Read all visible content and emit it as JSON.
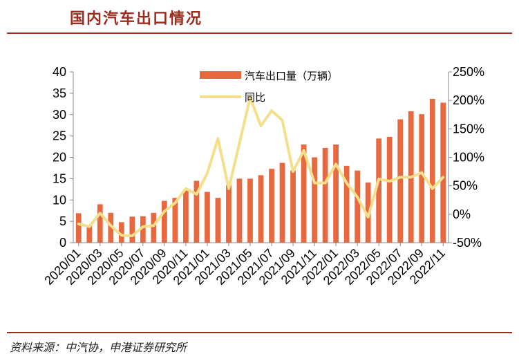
{
  "header": {
    "title": "国内汽车出口情况"
  },
  "footer": {
    "source": "资料来源：中汽协，申港证券研究所"
  },
  "chart_data": {
    "type": "bar+line",
    "categories": [
      "2020/01",
      "2020/02",
      "2020/03",
      "2020/04",
      "2020/05",
      "2020/06",
      "2020/07",
      "2020/08",
      "2020/09",
      "2020/10",
      "2020/11",
      "2020/12",
      "2021/01",
      "2021/02",
      "2021/03",
      "2021/04",
      "2021/05",
      "2021/06",
      "2021/07",
      "2021/08",
      "2021/09",
      "2021/10",
      "2021/11",
      "2021/12",
      "2022/01",
      "2022/02",
      "2022/03",
      "2022/04",
      "2022/05",
      "2022/06",
      "2022/07",
      "2022/08",
      "2022/09",
      "2022/10",
      "2022/11"
    ],
    "x_tick_labels": [
      "2020/01",
      "2020/03",
      "2020/05",
      "2020/07",
      "2020/09",
      "2020/11",
      "2021/01",
      "2021/03",
      "2021/05",
      "2021/07",
      "2021/09",
      "2021/11",
      "2022/01",
      "2022/03",
      "2022/05",
      "2022/07",
      "2022/09",
      "2022/11"
    ],
    "series": [
      {
        "name": "汽车出口量（万辆）",
        "kind": "bar",
        "axis": "left",
        "color": "#e8693f",
        "values": [
          6.9,
          4.0,
          9.0,
          7.0,
          4.8,
          6.1,
          6.2,
          7.0,
          9.8,
          10.5,
          12.5,
          14.5,
          11.9,
          10.5,
          13.5,
          15.0,
          15.0,
          15.8,
          17.3,
          18.7,
          16.9,
          23.0,
          20.0,
          22.2,
          23.0,
          18.0,
          16.9,
          14.1,
          24.4,
          24.8,
          28.9,
          30.8,
          30.1,
          33.7,
          32.8
        ]
      },
      {
        "name": "同比",
        "kind": "line",
        "axis": "right",
        "color": "#f3df8c",
        "values": [
          -0.17,
          -0.22,
          0.02,
          -0.2,
          -0.37,
          -0.38,
          -0.22,
          -0.2,
          0.05,
          0.2,
          0.45,
          0.35,
          0.72,
          1.33,
          0.45,
          1.25,
          2.05,
          1.55,
          1.82,
          1.65,
          0.75,
          1.12,
          0.55,
          0.55,
          0.88,
          0.55,
          0.3,
          -0.05,
          0.62,
          0.58,
          0.65,
          0.65,
          0.73,
          0.45,
          0.65
        ]
      }
    ],
    "left_axis": {
      "min": 0,
      "max": 40,
      "ticks": [
        0,
        5,
        10,
        15,
        20,
        25,
        30,
        35,
        40
      ]
    },
    "right_axis": {
      "min": -0.5,
      "max": 2.5,
      "ticks": [
        "-50%",
        "0%",
        "50%",
        "100%",
        "150%",
        "200%",
        "250%"
      ]
    },
    "legend": {
      "placement": "top-center"
    },
    "grid": false
  }
}
